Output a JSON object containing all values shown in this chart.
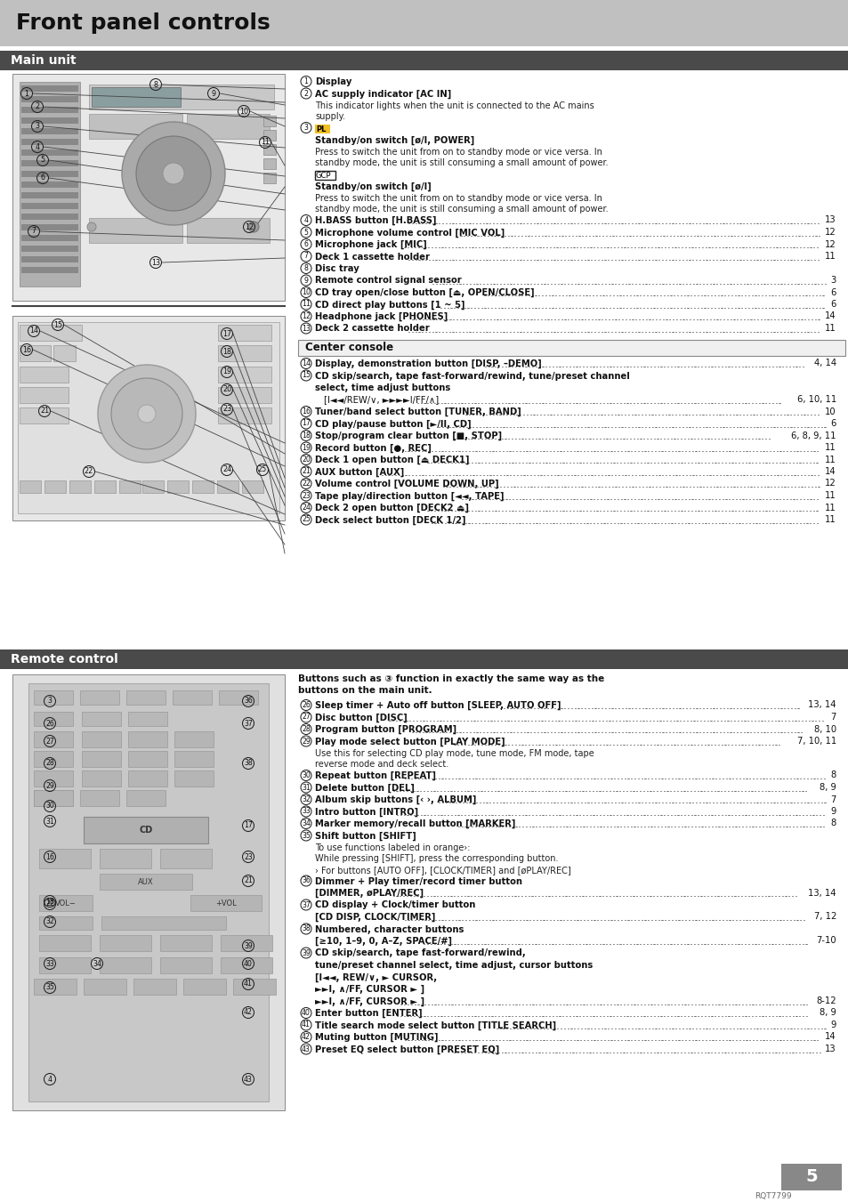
{
  "page_bg": "#ffffff",
  "header_bg": "#c0c0c0",
  "header_text": "Front panel controls",
  "section_bar_bg": "#4a4a4a",
  "section_bar_text_color": "#ffffff",
  "main_unit_label": "Main unit",
  "remote_control_label": "Remote control",
  "center_console_label": "Center console",
  "page_number": "5",
  "model_number": "RQT7799"
}
